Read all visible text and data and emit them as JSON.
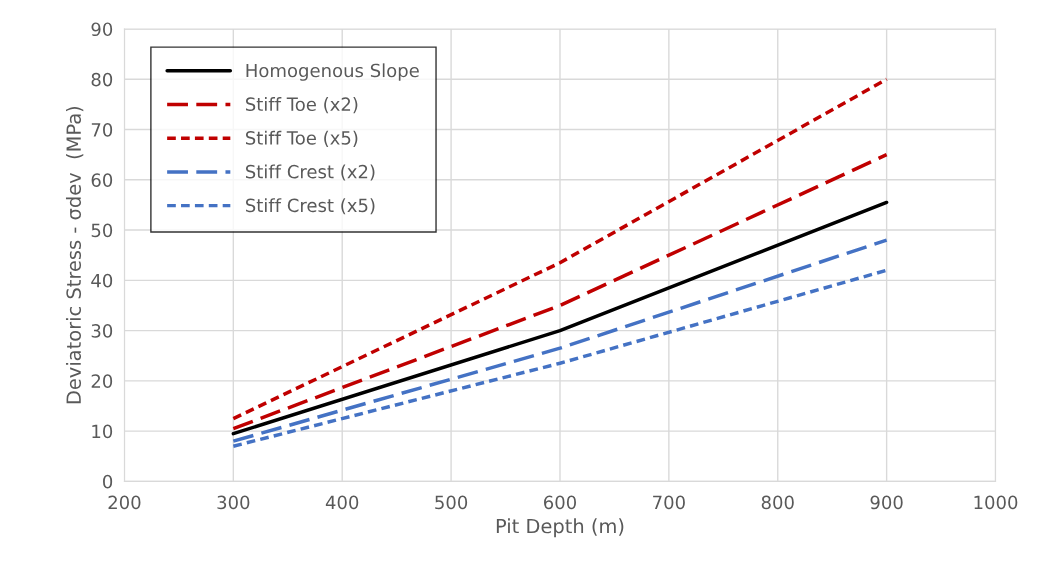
{
  "chart_data": {
    "type": "line",
    "xlabel": "Pit Depth (m)",
    "ylabel": "Deviatoric Stress - σdev  (MPa)",
    "x": [
      300,
      600,
      900
    ],
    "series": [
      {
        "name": "Homogenous Slope",
        "color": "#000000",
        "line_style": "solid",
        "values": [
          9.5,
          30,
          55.5
        ]
      },
      {
        "name": "Stiff Toe (x2)",
        "color": "#c00000",
        "line_style": "dashed",
        "values": [
          10.5,
          35,
          65
        ]
      },
      {
        "name": "Stiff Toe (x5)",
        "color": "#c00000",
        "line_style": "dotted",
        "values": [
          12.5,
          43.5,
          80
        ]
      },
      {
        "name": "Stiff Crest (x2)",
        "color": "#4472c4",
        "line_style": "dashed",
        "values": [
          8,
          26.5,
          48
        ]
      },
      {
        "name": "Stiff Crest (x5)",
        "color": "#4472c4",
        "line_style": "dotted",
        "values": [
          7,
          23.5,
          42
        ]
      }
    ],
    "xlim": [
      200,
      1000
    ],
    "xticks": [
      200,
      300,
      400,
      500,
      600,
      700,
      800,
      900,
      1000
    ],
    "ylim": [
      0,
      90
    ],
    "yticks": [
      0,
      10,
      20,
      30,
      40,
      50,
      60,
      70,
      80,
      90
    ],
    "grid": true,
    "legend": "top left"
  }
}
